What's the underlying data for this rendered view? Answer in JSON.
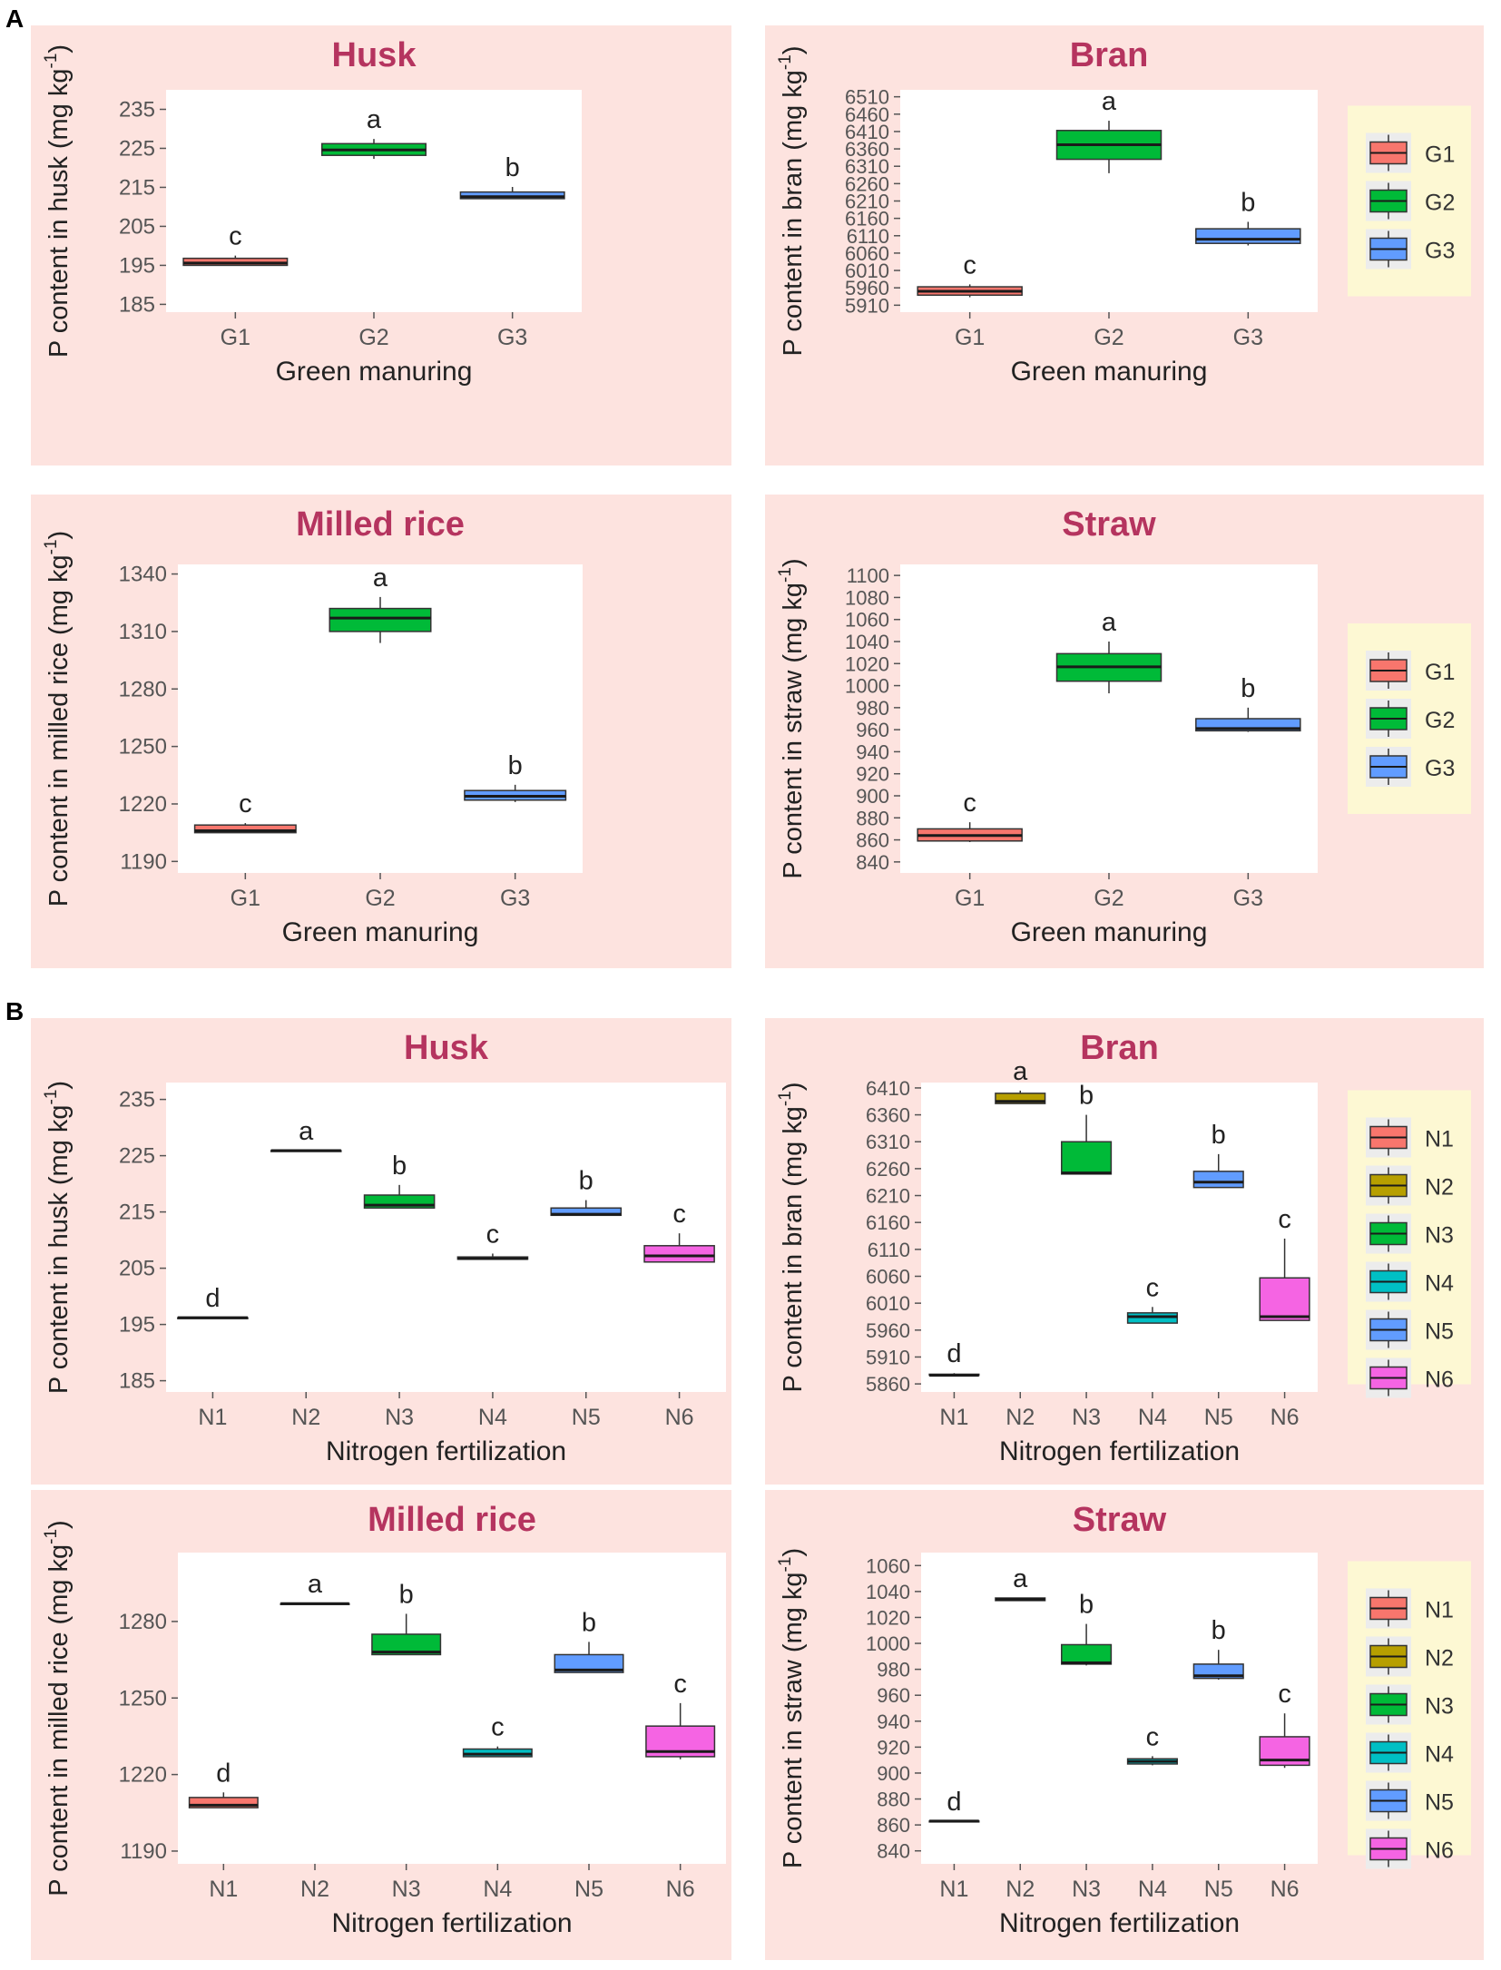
{
  "figure": {
    "section_labels": [
      "A",
      "B"
    ],
    "colors": {
      "panel_bg": "#fde3df",
      "plot_bg": "#ffffff",
      "legend_bg": "#fdf8d3",
      "title": "#b5345f",
      "tick": "#555555",
      "axis_label": "#222222",
      "box_stroke": "#333333"
    }
  },
  "legends": {
    "green": {
      "items": [
        {
          "key": "G1",
          "color": "#f8766d"
        },
        {
          "key": "G2",
          "color": "#00ba38"
        },
        {
          "key": "G3",
          "color": "#619cff"
        }
      ]
    },
    "nitrogen": {
      "items": [
        {
          "key": "N1",
          "color": "#f8766d"
        },
        {
          "key": "N2",
          "color": "#b79f00"
        },
        {
          "key": "N3",
          "color": "#00ba38"
        },
        {
          "key": "N4",
          "color": "#00bfc4"
        },
        {
          "key": "N5",
          "color": "#619cff"
        },
        {
          "key": "N6",
          "color": "#f564e3"
        }
      ]
    }
  },
  "chart_data": [
    {
      "id": "A-husk",
      "section": "A",
      "type": "box",
      "title": "Husk",
      "xlabel": "Green manuring",
      "ylabel": "P content in husk (mg kg",
      "ylim": [
        183,
        240
      ],
      "yticks": [
        185,
        195,
        205,
        215,
        225,
        235
      ],
      "legend": "",
      "boxes": [
        {
          "cat": "G1",
          "min": 195.0,
          "q1": 195.0,
          "median": 195.6,
          "q3": 196.8,
          "max": 197.5,
          "letter": "c",
          "color": "#f8766d"
        },
        {
          "cat": "G2",
          "min": 222.3,
          "q1": 223.2,
          "median": 224.6,
          "q3": 226.2,
          "max": 227.4,
          "letter": "a",
          "color": "#00ba38"
        },
        {
          "cat": "G3",
          "min": 212.0,
          "q1": 212.1,
          "median": 212.6,
          "q3": 213.8,
          "max": 215.1,
          "letter": "b",
          "color": "#619cff"
        }
      ]
    },
    {
      "id": "A-bran",
      "section": "A",
      "type": "box",
      "title": "Bran",
      "xlabel": "Green manuring",
      "ylabel": "P content in bran (mg kg",
      "ylim": [
        5890,
        6530
      ],
      "yticks": [
        5910,
        5960,
        6010,
        6060,
        6110,
        6160,
        6210,
        6260,
        6310,
        6360,
        6410,
        6460,
        6510
      ],
      "legend": "green",
      "boxes": [
        {
          "cat": "G1",
          "min": 5933,
          "q1": 5939,
          "median": 5950,
          "q3": 5963,
          "max": 5970,
          "letter": "c",
          "color": "#f8766d"
        },
        {
          "cat": "G2",
          "min": 6290,
          "q1": 6330,
          "median": 6372,
          "q3": 6413,
          "max": 6441,
          "letter": "a",
          "color": "#00ba38"
        },
        {
          "cat": "G3",
          "min": 6082,
          "q1": 6088,
          "median": 6100,
          "q3": 6130,
          "max": 6150,
          "letter": "b",
          "color": "#619cff"
        }
      ]
    },
    {
      "id": "A-milled",
      "section": "A",
      "type": "box",
      "title": "Milled rice",
      "xlabel": "Green manuring",
      "ylabel": "P content in milled rice (mg kg",
      "ylim": [
        1184,
        1345
      ],
      "yticks": [
        1190,
        1220,
        1250,
        1280,
        1310,
        1340
      ],
      "legend": "",
      "boxes": [
        {
          "cat": "G1",
          "min": 1205,
          "q1": 1205,
          "median": 1206,
          "q3": 1209,
          "max": 1210,
          "letter": "c",
          "color": "#f8766d"
        },
        {
          "cat": "G2",
          "min": 1304,
          "q1": 1310,
          "median": 1317,
          "q3": 1322,
          "max": 1328,
          "letter": "a",
          "color": "#00ba38"
        },
        {
          "cat": "G3",
          "min": 1221,
          "q1": 1222,
          "median": 1224,
          "q3": 1227,
          "max": 1230,
          "letter": "b",
          "color": "#619cff"
        }
      ]
    },
    {
      "id": "A-straw",
      "section": "A",
      "type": "box",
      "title": "Straw",
      "xlabel": "Green manuring",
      "ylabel": "P content in straw (mg kg",
      "ylim": [
        830,
        1110
      ],
      "yticks": [
        840,
        860,
        880,
        900,
        920,
        940,
        960,
        980,
        1000,
        1020,
        1040,
        1060,
        1080,
        1100
      ],
      "legend": "green",
      "boxes": [
        {
          "cat": "G1",
          "min": 858,
          "q1": 859,
          "median": 864,
          "q3": 870,
          "max": 876,
          "letter": "c",
          "color": "#f8766d"
        },
        {
          "cat": "G2",
          "min": 993,
          "q1": 1004,
          "median": 1017,
          "q3": 1029,
          "max": 1040,
          "letter": "a",
          "color": "#00ba38"
        },
        {
          "cat": "G3",
          "min": 958,
          "q1": 959,
          "median": 961,
          "q3": 970,
          "max": 980,
          "letter": "b",
          "color": "#619cff"
        }
      ]
    },
    {
      "id": "B-husk",
      "section": "B",
      "type": "box",
      "title": "Husk",
      "xlabel": "Nitrogen fertilization",
      "ylabel": "P content in husk (mg kg",
      "ylim": [
        183,
        238
      ],
      "yticks": [
        185,
        195,
        205,
        215,
        225,
        235
      ],
      "legend": "",
      "boxes": [
        {
          "cat": "N1",
          "min": 196.2,
          "q1": 196.2,
          "median": 196.2,
          "q3": 196.2,
          "max": 196.2,
          "letter": "d",
          "color": "#f8766d"
        },
        {
          "cat": "N2",
          "min": 225.9,
          "q1": 225.9,
          "median": 225.9,
          "q3": 225.9,
          "max": 225.9,
          "letter": "a",
          "color": "#b79f00"
        },
        {
          "cat": "N3",
          "min": 215.7,
          "q1": 215.7,
          "median": 216.2,
          "q3": 218.0,
          "max": 219.8,
          "letter": "b",
          "color": "#00ba38"
        },
        {
          "cat": "N4",
          "min": 206.6,
          "q1": 206.6,
          "median": 206.7,
          "q3": 207.0,
          "max": 207.6,
          "letter": "c",
          "color": "#00bfc4"
        },
        {
          "cat": "N5",
          "min": 214.4,
          "q1": 214.4,
          "median": 214.6,
          "q3": 215.7,
          "max": 217.1,
          "letter": "b",
          "color": "#619cff"
        },
        {
          "cat": "N6",
          "min": 206.1,
          "q1": 206.1,
          "median": 207.2,
          "q3": 209.0,
          "max": 211.2,
          "letter": "c",
          "color": "#f564e3"
        }
      ]
    },
    {
      "id": "B-bran",
      "section": "B",
      "type": "box",
      "title": "Bran",
      "xlabel": "Nitrogen fertilization",
      "ylabel": "P content in bran (mg kg",
      "ylim": [
        5845,
        6420
      ],
      "yticks": [
        5860,
        5910,
        5960,
        6010,
        6060,
        6110,
        6160,
        6210,
        6260,
        6310,
        6360,
        6410
      ],
      "legend": "nitrogen",
      "boxes": [
        {
          "cat": "N1",
          "min": 5876,
          "q1": 5876,
          "median": 5876,
          "q3": 5878,
          "max": 5880,
          "letter": "d",
          "color": "#f8766d"
        },
        {
          "cat": "N2",
          "min": 6381,
          "q1": 6381,
          "median": 6385,
          "q3": 6400,
          "max": 6405,
          "letter": "a",
          "color": "#b79f00"
        },
        {
          "cat": "N3",
          "min": 6250,
          "q1": 6250,
          "median": 6252,
          "q3": 6310,
          "max": 6360,
          "letter": "b",
          "color": "#00ba38"
        },
        {
          "cat": "N4",
          "min": 5973,
          "q1": 5973,
          "median": 5985,
          "q3": 5992,
          "max": 6003,
          "letter": "c",
          "color": "#00bfc4"
        },
        {
          "cat": "N5",
          "min": 6225,
          "q1": 6225,
          "median": 6235,
          "q3": 6255,
          "max": 6287,
          "letter": "b",
          "color": "#619cff"
        },
        {
          "cat": "N6",
          "min": 5978,
          "q1": 5978,
          "median": 5985,
          "q3": 6057,
          "max": 6130,
          "letter": "c",
          "color": "#f564e3"
        }
      ]
    },
    {
      "id": "B-milled",
      "section": "B",
      "type": "box",
      "title": "Milled rice",
      "xlabel": "Nitrogen fertilization",
      "ylabel": "P content in milled rice (mg kg",
      "ylim": [
        1185,
        1307
      ],
      "yticks": [
        1190,
        1220,
        1250,
        1280
      ],
      "legend": "",
      "boxes": [
        {
          "cat": "N1",
          "min": 1207,
          "q1": 1207,
          "median": 1208,
          "q3": 1211,
          "max": 1213,
          "letter": "d",
          "color": "#f8766d"
        },
        {
          "cat": "N2",
          "min": 1287,
          "q1": 1287,
          "median": 1287,
          "q3": 1287,
          "max": 1287,
          "letter": "a",
          "color": "#b79f00"
        },
        {
          "cat": "N3",
          "min": 1267,
          "q1": 1267,
          "median": 1268,
          "q3": 1275,
          "max": 1283,
          "letter": "b",
          "color": "#00ba38"
        },
        {
          "cat": "N4",
          "min": 1227,
          "q1": 1227,
          "median": 1228,
          "q3": 1230,
          "max": 1231,
          "letter": "c",
          "color": "#00bfc4"
        },
        {
          "cat": "N5",
          "min": 1260,
          "q1": 1260,
          "median": 1261,
          "q3": 1267,
          "max": 1272,
          "letter": "b",
          "color": "#619cff"
        },
        {
          "cat": "N6",
          "min": 1226,
          "q1": 1227,
          "median": 1229,
          "q3": 1239,
          "max": 1248,
          "letter": "c",
          "color": "#f564e3"
        }
      ]
    },
    {
      "id": "B-straw",
      "section": "B",
      "type": "box",
      "title": "Straw",
      "xlabel": "Nitrogen fertilization",
      "ylabel": "P content in straw (mg kg",
      "ylim": [
        830,
        1070
      ],
      "yticks": [
        840,
        860,
        880,
        900,
        920,
        940,
        960,
        980,
        1000,
        1020,
        1040,
        1060
      ],
      "legend": "nitrogen",
      "boxes": [
        {
          "cat": "N1",
          "min": 863,
          "q1": 863,
          "median": 863,
          "q3": 863,
          "max": 863,
          "letter": "d",
          "color": "#f8766d"
        },
        {
          "cat": "N2",
          "min": 1033,
          "q1": 1033,
          "median": 1034,
          "q3": 1035,
          "max": 1035,
          "letter": "a",
          "color": "#b79f00"
        },
        {
          "cat": "N3",
          "min": 983,
          "q1": 984,
          "median": 985,
          "q3": 999,
          "max": 1015,
          "letter": "b",
          "color": "#00ba38"
        },
        {
          "cat": "N4",
          "min": 906,
          "q1": 907,
          "median": 909,
          "q3": 911,
          "max": 913,
          "letter": "c",
          "color": "#00bfc4"
        },
        {
          "cat": "N5",
          "min": 972,
          "q1": 973,
          "median": 975,
          "q3": 984,
          "max": 995,
          "letter": "b",
          "color": "#619cff"
        },
        {
          "cat": "N6",
          "min": 904,
          "q1": 906,
          "median": 910,
          "q3": 928,
          "max": 946,
          "letter": "c",
          "color": "#f564e3"
        }
      ]
    }
  ]
}
